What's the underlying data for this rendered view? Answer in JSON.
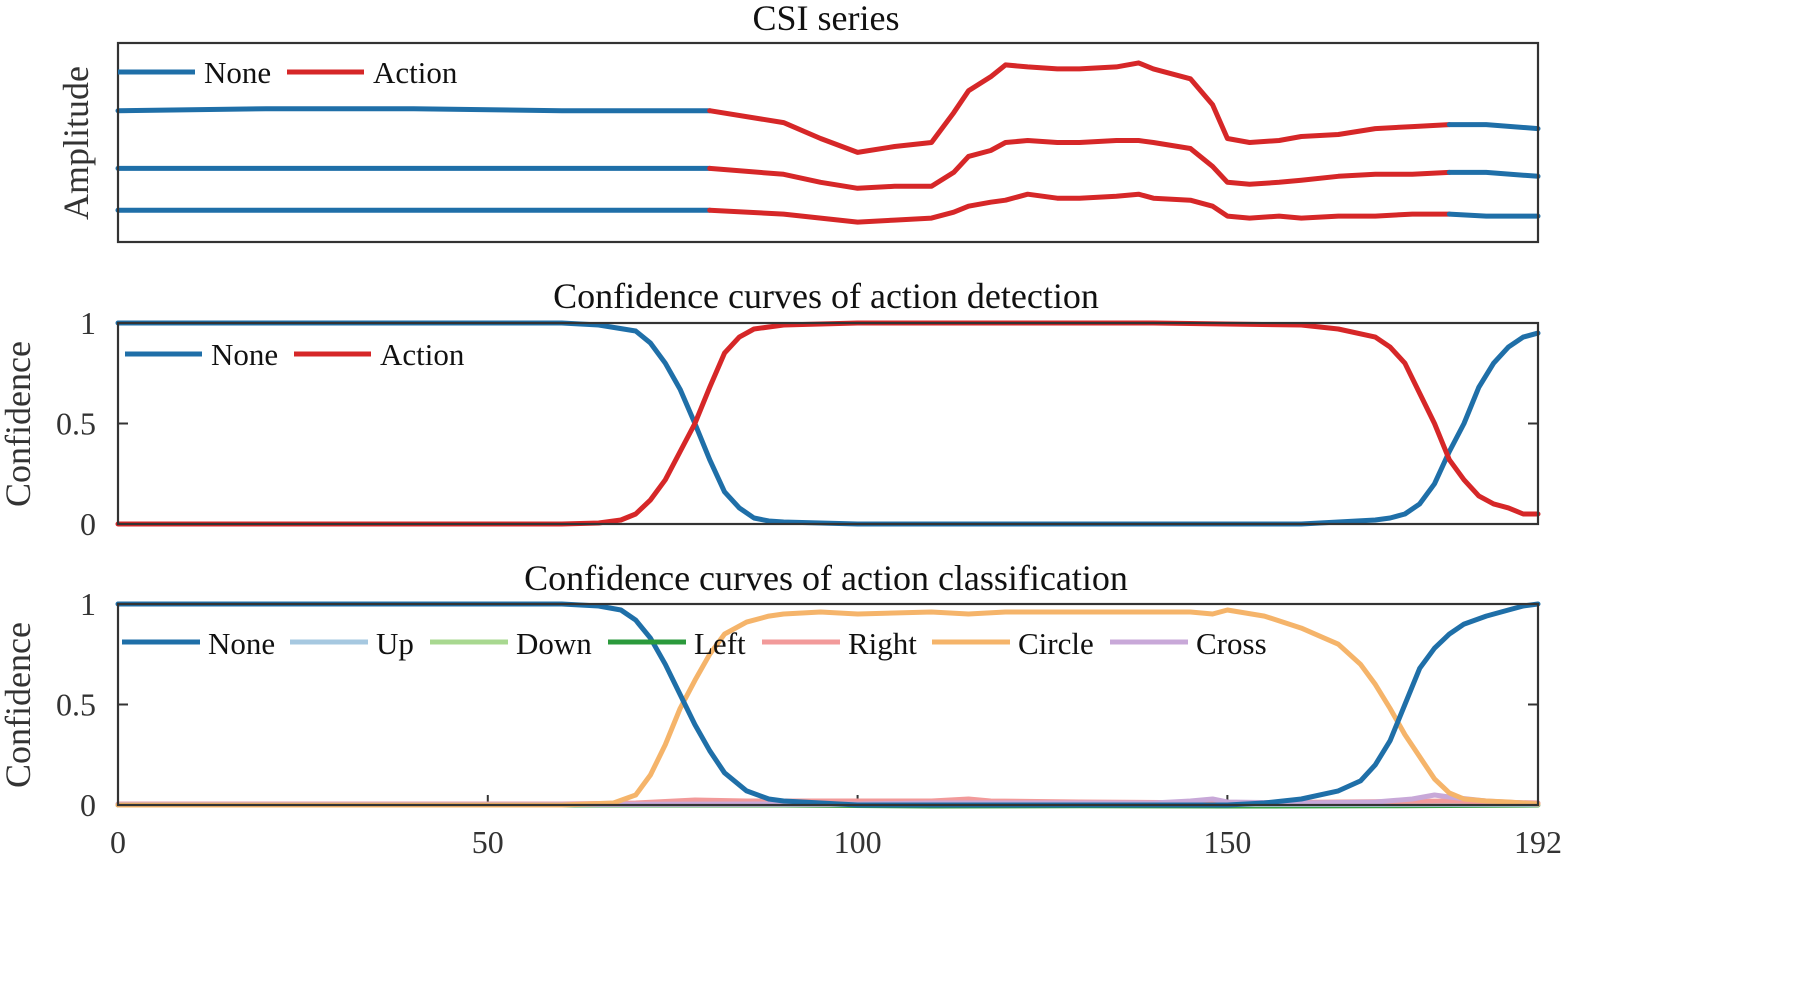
{
  "colors": {
    "none": "#1f6fa8",
    "action": "#d62728",
    "up": "#a6c8e0",
    "down": "#a8d890",
    "left": "#2b9a3c",
    "right": "#f29a9a",
    "circle": "#f5b46a",
    "cross": "#c8a8d8"
  },
  "chart_data": [
    {
      "type": "line",
      "title": "CSI series",
      "ylabel": "Amplitude",
      "xlim": [
        0,
        192
      ],
      "ylim": [
        0,
        1
      ],
      "legend": [
        "None",
        "Action"
      ],
      "legend_position": "top-left",
      "action_segment": [
        80,
        180
      ],
      "series": [
        {
          "name": "upper",
          "x": [
            0,
            20,
            40,
            60,
            80,
            90,
            95,
            100,
            105,
            110,
            113,
            115,
            118,
            120,
            123,
            127,
            130,
            135,
            138,
            140,
            145,
            148,
            150,
            153,
            157,
            160,
            165,
            170,
            175,
            180,
            185,
            192
          ],
          "values": [
            0.66,
            0.67,
            0.67,
            0.66,
            0.66,
            0.6,
            0.52,
            0.45,
            0.48,
            0.5,
            0.65,
            0.76,
            0.83,
            0.89,
            0.88,
            0.87,
            0.87,
            0.88,
            0.9,
            0.87,
            0.82,
            0.69,
            0.52,
            0.5,
            0.51,
            0.53,
            0.54,
            0.57,
            0.58,
            0.59,
            0.59,
            0.57
          ]
        },
        {
          "name": "middle",
          "x": [
            0,
            20,
            40,
            60,
            80,
            90,
            95,
            100,
            105,
            110,
            113,
            115,
            118,
            120,
            123,
            127,
            130,
            135,
            138,
            140,
            145,
            148,
            150,
            153,
            157,
            160,
            165,
            170,
            175,
            180,
            185,
            192
          ],
          "values": [
            0.37,
            0.37,
            0.37,
            0.37,
            0.37,
            0.34,
            0.3,
            0.27,
            0.28,
            0.28,
            0.35,
            0.43,
            0.46,
            0.5,
            0.51,
            0.5,
            0.5,
            0.51,
            0.51,
            0.5,
            0.47,
            0.38,
            0.3,
            0.29,
            0.3,
            0.31,
            0.33,
            0.34,
            0.34,
            0.35,
            0.35,
            0.33
          ]
        },
        {
          "name": "lower",
          "x": [
            0,
            20,
            40,
            60,
            80,
            90,
            95,
            100,
            105,
            110,
            113,
            115,
            118,
            120,
            123,
            127,
            130,
            135,
            138,
            140,
            145,
            148,
            150,
            153,
            157,
            160,
            165,
            170,
            175,
            180,
            185,
            192
          ],
          "values": [
            0.16,
            0.16,
            0.16,
            0.16,
            0.16,
            0.14,
            0.12,
            0.1,
            0.11,
            0.12,
            0.15,
            0.18,
            0.2,
            0.21,
            0.24,
            0.22,
            0.22,
            0.23,
            0.24,
            0.22,
            0.21,
            0.18,
            0.13,
            0.12,
            0.13,
            0.12,
            0.13,
            0.13,
            0.14,
            0.14,
            0.13,
            0.13
          ]
        }
      ]
    },
    {
      "type": "line",
      "title": "Confidence curves of action detection",
      "ylabel": "Confidence",
      "xlim": [
        0,
        192
      ],
      "ylim": [
        0,
        1
      ],
      "yticks": [
        "0",
        "0.5",
        "1"
      ],
      "legend": [
        "None",
        "Action"
      ],
      "legend_position": "top-left",
      "series": [
        {
          "name": "None",
          "x": [
            0,
            10,
            20,
            30,
            40,
            50,
            60,
            65,
            70,
            72,
            74,
            76,
            78,
            80,
            82,
            84,
            86,
            88,
            90,
            95,
            100,
            120,
            140,
            160,
            170,
            172,
            174,
            176,
            178,
            180,
            182,
            184,
            186,
            188,
            190,
            192
          ],
          "values": [
            1,
            1,
            1,
            1,
            1,
            1,
            1,
            0.99,
            0.96,
            0.9,
            0.8,
            0.67,
            0.5,
            0.32,
            0.16,
            0.08,
            0.03,
            0.015,
            0.01,
            0.005,
            0.0,
            0.0,
            0.0,
            0.0,
            0.02,
            0.03,
            0.05,
            0.1,
            0.2,
            0.36,
            0.5,
            0.68,
            0.8,
            0.88,
            0.93,
            0.95
          ]
        },
        {
          "name": "Action",
          "x": [
            0,
            10,
            20,
            30,
            40,
            50,
            60,
            65,
            68,
            70,
            72,
            74,
            76,
            78,
            80,
            82,
            84,
            86,
            88,
            90,
            95,
            100,
            120,
            140,
            160,
            165,
            170,
            172,
            174,
            176,
            178,
            180,
            182,
            184,
            186,
            188,
            190,
            192
          ],
          "values": [
            0,
            0,
            0,
            0,
            0,
            0,
            0,
            0.005,
            0.02,
            0.05,
            0.12,
            0.22,
            0.36,
            0.5,
            0.68,
            0.85,
            0.93,
            0.97,
            0.98,
            0.99,
            0.995,
            1,
            1,
            1,
            0.99,
            0.97,
            0.93,
            0.88,
            0.8,
            0.65,
            0.5,
            0.32,
            0.22,
            0.14,
            0.1,
            0.08,
            0.05,
            0.05
          ]
        }
      ]
    },
    {
      "type": "line",
      "title": "Confidence curves of action classification",
      "ylabel": "Confidence",
      "xlim": [
        0,
        192
      ],
      "ylim": [
        0,
        1
      ],
      "xticks": [
        "0",
        "50",
        "100",
        "150",
        "192"
      ],
      "yticks": [
        "0",
        "0.5",
        "1"
      ],
      "legend": [
        "None",
        "Up",
        "Down",
        "Left",
        "Right",
        "Circle",
        "Cross"
      ],
      "legend_position": "top",
      "series": [
        {
          "name": "None",
          "x": [
            0,
            20,
            40,
            60,
            65,
            68,
            70,
            72,
            74,
            76,
            78,
            80,
            82,
            85,
            88,
            90,
            95,
            100,
            120,
            140,
            150,
            155,
            160,
            165,
            168,
            170,
            172,
            174,
            176,
            178,
            180,
            182,
            185,
            188,
            190,
            192
          ],
          "values": [
            1,
            1,
            1,
            1,
            0.99,
            0.97,
            0.92,
            0.83,
            0.7,
            0.55,
            0.4,
            0.27,
            0.16,
            0.07,
            0.03,
            0.02,
            0.01,
            0.0,
            0.0,
            0.0,
            0.0,
            0.01,
            0.03,
            0.07,
            0.12,
            0.2,
            0.32,
            0.5,
            0.68,
            0.78,
            0.85,
            0.9,
            0.94,
            0.97,
            0.99,
            1.0
          ]
        },
        {
          "name": "Up",
          "x": [
            0,
            50,
            100,
            150,
            192
          ],
          "values": [
            0.003,
            0.003,
            0.003,
            0.003,
            0.003
          ]
        },
        {
          "name": "Down",
          "x": [
            0,
            50,
            100,
            150,
            192
          ],
          "values": [
            0.002,
            0.002,
            0.002,
            0.002,
            0.002
          ]
        },
        {
          "name": "Left",
          "x": [
            0,
            50,
            90,
            110,
            130,
            150,
            170,
            192
          ],
          "values": [
            0.0,
            0.0,
            0.0,
            -0.005,
            -0.004,
            -0.005,
            -0.004,
            0.0
          ]
        },
        {
          "name": "Right",
          "x": [
            0,
            60,
            70,
            78,
            85,
            100,
            110,
            115,
            118,
            130,
            150,
            165,
            180,
            192
          ],
          "values": [
            0.005,
            0.005,
            0.01,
            0.025,
            0.02,
            0.02,
            0.02,
            0.03,
            0.02,
            0.015,
            0.01,
            0.015,
            0.02,
            0.01
          ]
        },
        {
          "name": "Circle",
          "x": [
            0,
            20,
            40,
            60,
            67,
            70,
            72,
            74,
            76,
            78,
            80,
            82,
            85,
            88,
            90,
            95,
            100,
            110,
            115,
            120,
            130,
            140,
            145,
            148,
            150,
            155,
            160,
            165,
            168,
            170,
            172,
            174,
            176,
            178,
            180,
            182,
            185,
            188,
            190,
            192
          ],
          "values": [
            0,
            0,
            0,
            0,
            0.01,
            0.05,
            0.15,
            0.3,
            0.48,
            0.62,
            0.75,
            0.85,
            0.91,
            0.94,
            0.95,
            0.96,
            0.95,
            0.96,
            0.95,
            0.96,
            0.96,
            0.96,
            0.96,
            0.95,
            0.97,
            0.94,
            0.88,
            0.8,
            0.7,
            0.6,
            0.48,
            0.35,
            0.24,
            0.13,
            0.06,
            0.03,
            0.02,
            0.015,
            0.01,
            0.005
          ]
        },
        {
          "name": "Cross",
          "x": [
            0,
            50,
            90,
            100,
            110,
            120,
            140,
            145,
            148,
            150,
            160,
            170,
            175,
            178,
            180,
            185,
            190,
            192
          ],
          "values": [
            0.003,
            0.003,
            0.005,
            0.005,
            0.01,
            0.01,
            0.01,
            0.02,
            0.03,
            0.015,
            0.01,
            0.015,
            0.03,
            0.05,
            0.04,
            0.02,
            0.01,
            0.005
          ]
        }
      ]
    }
  ]
}
